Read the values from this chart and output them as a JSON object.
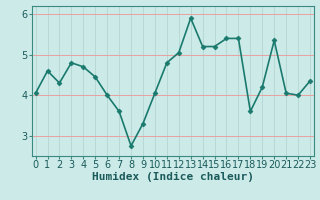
{
  "xlabel": "Humidex (Indice chaleur)",
  "x": [
    0,
    1,
    2,
    3,
    4,
    5,
    6,
    7,
    8,
    9,
    10,
    11,
    12,
    13,
    14,
    15,
    16,
    17,
    18,
    19,
    20,
    21,
    22,
    23
  ],
  "y": [
    4.05,
    4.6,
    4.3,
    4.8,
    4.7,
    4.45,
    4.0,
    3.6,
    2.75,
    3.3,
    4.05,
    4.8,
    5.05,
    5.9,
    5.2,
    5.2,
    5.4,
    5.4,
    3.6,
    4.2,
    5.35,
    4.05,
    4.0,
    4.35
  ],
  "line_color": "#1a7a6e",
  "marker": "D",
  "marker_size": 2.5,
  "bg_color": "#cceae8",
  "hgrid_color": "#e8a0a0",
  "vgrid_color": "#b8d8d5",
  "ylim": [
    2.5,
    6.2
  ],
  "yticks": [
    3,
    4,
    5,
    6
  ],
  "xticks": [
    0,
    1,
    2,
    3,
    4,
    5,
    6,
    7,
    8,
    9,
    10,
    11,
    12,
    13,
    14,
    15,
    16,
    17,
    18,
    19,
    20,
    21,
    22,
    23
  ],
  "xlabel_fontsize": 8,
  "tick_fontsize": 7,
  "linewidth": 1.2
}
